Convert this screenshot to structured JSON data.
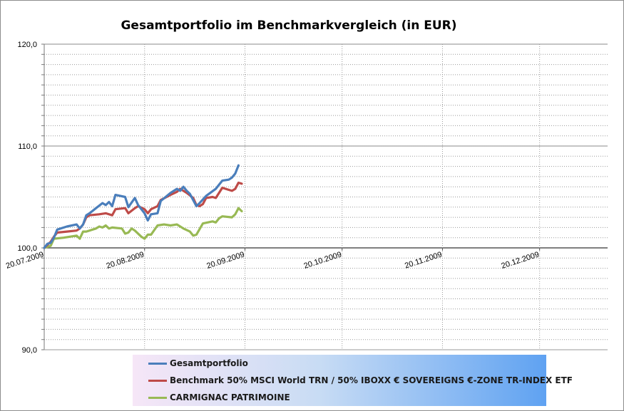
{
  "chart_data": {
    "type": "line",
    "title": "Gesamtportfolio  im Benchmarkvergleich  (in EUR)",
    "ylim": [
      90,
      120
    ],
    "xlim": [
      "2009-07-20",
      "2010-01-10"
    ],
    "y_ticks": [
      "120,0",
      "110,0",
      "100,0",
      "90,0"
    ],
    "y_tick_values": [
      120,
      110,
      100,
      90
    ],
    "x_ticks": [
      "20.07.2009",
      "20.08.2009",
      "20.09.2009",
      "20.10.2009",
      "20.11.2009",
      "20.12.2009"
    ],
    "x_tick_dates": [
      "2009-07-20",
      "2009-08-20",
      "2009-09-20",
      "2009-10-20",
      "2009-11-20",
      "2009-12-20"
    ],
    "grid": true,
    "legend_position": "bottom",
    "series": [
      {
        "name": "Gesamtportfolio",
        "color": "#4a7ebb",
        "points": [
          [
            "2009-07-20",
            100.0
          ],
          [
            "2009-07-21",
            100.4
          ],
          [
            "2009-07-22",
            100.5
          ],
          [
            "2009-07-23",
            101.0
          ],
          [
            "2009-07-24",
            101.8
          ],
          [
            "2009-07-27",
            102.1
          ],
          [
            "2009-07-30",
            102.3
          ],
          [
            "2009-07-31",
            101.9
          ],
          [
            "2009-08-01",
            102.3
          ],
          [
            "2009-08-02",
            103.2
          ],
          [
            "2009-08-03",
            103.4
          ],
          [
            "2009-08-05",
            103.9
          ],
          [
            "2009-08-07",
            104.4
          ],
          [
            "2009-08-08",
            104.2
          ],
          [
            "2009-08-09",
            104.5
          ],
          [
            "2009-08-10",
            104.1
          ],
          [
            "2009-08-11",
            105.2
          ],
          [
            "2009-08-14",
            105.0
          ],
          [
            "2009-08-15",
            104.0
          ],
          [
            "2009-08-17",
            104.9
          ],
          [
            "2009-08-18",
            104.2
          ],
          [
            "2009-08-20",
            103.4
          ],
          [
            "2009-08-21",
            102.7
          ],
          [
            "2009-08-22",
            103.3
          ],
          [
            "2009-08-24",
            103.4
          ],
          [
            "2009-08-25",
            104.6
          ],
          [
            "2009-08-28",
            105.4
          ],
          [
            "2009-08-30",
            105.8
          ],
          [
            "2009-08-31",
            105.6
          ],
          [
            "2009-09-01",
            106.0
          ],
          [
            "2009-09-02",
            105.6
          ],
          [
            "2009-09-03",
            105.3
          ],
          [
            "2009-09-05",
            104.1
          ],
          [
            "2009-09-06",
            104.4
          ],
          [
            "2009-09-08",
            105.1
          ],
          [
            "2009-09-11",
            105.8
          ],
          [
            "2009-09-12",
            106.2
          ],
          [
            "2009-09-13",
            106.6
          ],
          [
            "2009-09-15",
            106.7
          ],
          [
            "2009-09-16",
            106.9
          ],
          [
            "2009-09-17",
            107.3
          ],
          [
            "2009-09-18",
            108.1
          ]
        ]
      },
      {
        "name": "Benchmark 50% MSCI World TRN / 50% IBOXX € SOVEREIGNS €-ZONE TR-INDEX ETF",
        "color": "#be4b48",
        "points": [
          [
            "2009-07-20",
            100.0
          ],
          [
            "2009-07-21",
            100.3
          ],
          [
            "2009-07-22",
            100.6
          ],
          [
            "2009-07-23",
            101.1
          ],
          [
            "2009-07-24",
            101.5
          ],
          [
            "2009-07-27",
            101.6
          ],
          [
            "2009-07-30",
            101.7
          ],
          [
            "2009-07-31",
            101.9
          ],
          [
            "2009-08-01",
            102.3
          ],
          [
            "2009-08-02",
            103.0
          ],
          [
            "2009-08-03",
            103.2
          ],
          [
            "2009-08-06",
            103.3
          ],
          [
            "2009-08-08",
            103.4
          ],
          [
            "2009-08-10",
            103.2
          ],
          [
            "2009-08-11",
            103.8
          ],
          [
            "2009-08-14",
            103.9
          ],
          [
            "2009-08-15",
            103.4
          ],
          [
            "2009-08-17",
            103.9
          ],
          [
            "2009-08-18",
            104.1
          ],
          [
            "2009-08-20",
            103.8
          ],
          [
            "2009-08-21",
            103.4
          ],
          [
            "2009-08-22",
            103.8
          ],
          [
            "2009-08-24",
            104.1
          ],
          [
            "2009-08-25",
            104.7
          ],
          [
            "2009-08-28",
            105.2
          ],
          [
            "2009-08-30",
            105.5
          ],
          [
            "2009-08-31",
            105.8
          ],
          [
            "2009-09-02",
            105.4
          ],
          [
            "2009-09-04",
            104.9
          ],
          [
            "2009-09-05",
            104.2
          ],
          [
            "2009-09-06",
            104.1
          ],
          [
            "2009-09-07",
            104.3
          ],
          [
            "2009-09-08",
            104.9
          ],
          [
            "2009-09-10",
            105.0
          ],
          [
            "2009-09-11",
            104.9
          ],
          [
            "2009-09-12",
            105.4
          ],
          [
            "2009-09-13",
            105.9
          ],
          [
            "2009-09-15",
            105.7
          ],
          [
            "2009-09-16",
            105.6
          ],
          [
            "2009-09-17",
            105.8
          ],
          [
            "2009-09-18",
            106.4
          ],
          [
            "2009-09-19",
            106.3
          ]
        ]
      },
      {
        "name": "CARMIGNAC PATRIMOINE",
        "color": "#98b954",
        "points": [
          [
            "2009-07-20",
            100.0
          ],
          [
            "2009-07-22",
            100.2
          ],
          [
            "2009-07-23",
            100.9
          ],
          [
            "2009-07-26",
            101.0
          ],
          [
            "2009-07-30",
            101.2
          ],
          [
            "2009-07-31",
            100.9
          ],
          [
            "2009-08-01",
            101.6
          ],
          [
            "2009-08-02",
            101.6
          ],
          [
            "2009-08-05",
            101.9
          ],
          [
            "2009-08-06",
            102.1
          ],
          [
            "2009-08-07",
            102.0
          ],
          [
            "2009-08-08",
            102.2
          ],
          [
            "2009-08-09",
            101.9
          ],
          [
            "2009-08-10",
            102.0
          ],
          [
            "2009-08-13",
            101.9
          ],
          [
            "2009-08-14",
            101.4
          ],
          [
            "2009-08-15",
            101.5
          ],
          [
            "2009-08-16",
            101.9
          ],
          [
            "2009-08-17",
            101.7
          ],
          [
            "2009-08-19",
            101.1
          ],
          [
            "2009-08-20",
            100.9
          ],
          [
            "2009-08-21",
            101.3
          ],
          [
            "2009-08-22",
            101.3
          ],
          [
            "2009-08-24",
            102.2
          ],
          [
            "2009-08-26",
            102.3
          ],
          [
            "2009-08-28",
            102.2
          ],
          [
            "2009-08-30",
            102.3
          ],
          [
            "2009-09-01",
            101.9
          ],
          [
            "2009-09-03",
            101.6
          ],
          [
            "2009-09-04",
            101.2
          ],
          [
            "2009-09-05",
            101.3
          ],
          [
            "2009-09-07",
            102.4
          ],
          [
            "2009-09-10",
            102.6
          ],
          [
            "2009-09-11",
            102.5
          ],
          [
            "2009-09-12",
            102.9
          ],
          [
            "2009-09-13",
            103.1
          ],
          [
            "2009-09-16",
            103.0
          ],
          [
            "2009-09-17",
            103.3
          ],
          [
            "2009-09-18",
            103.9
          ],
          [
            "2009-09-19",
            103.6
          ]
        ]
      }
    ]
  }
}
